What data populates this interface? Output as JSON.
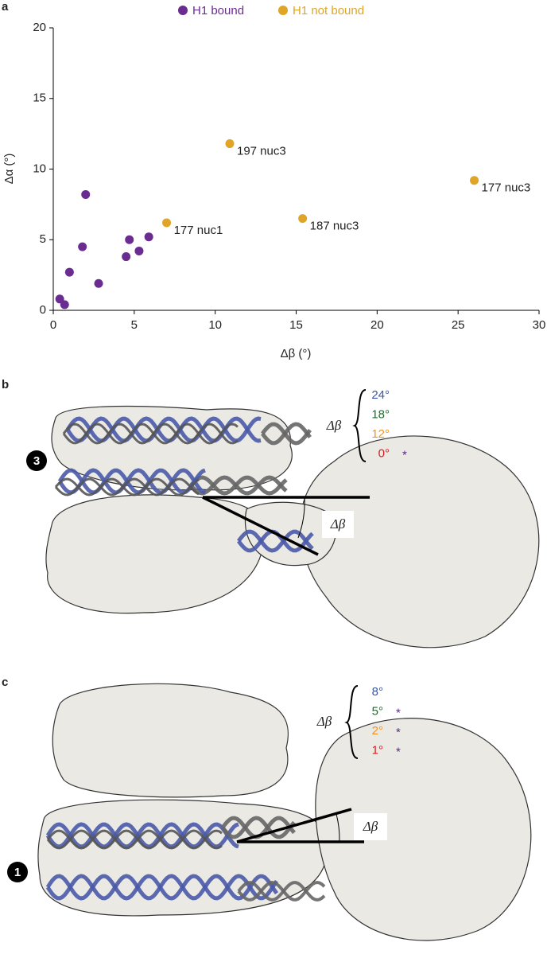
{
  "chart_data": {
    "type": "scatter",
    "x_label": "Δβ (°)",
    "y_label": "Δα (°)",
    "xlim": [
      0,
      30
    ],
    "xticks": [
      0,
      5,
      10,
      15,
      20,
      25,
      30
    ],
    "ylim": [
      0,
      20
    ],
    "yticks": [
      0,
      5,
      10,
      15,
      20
    ],
    "grid": false,
    "legend": "top",
    "series": [
      {
        "name": "H1 bound",
        "color": "#6a2c91",
        "x": [
          0.4,
          0.7,
          1.0,
          1.8,
          2.0,
          2.8,
          4.5,
          4.7,
          5.3,
          5.9
        ],
        "values": [
          0.8,
          0.4,
          2.7,
          4.5,
          8.2,
          1.9,
          3.8,
          5.0,
          4.2,
          5.2
        ]
      },
      {
        "name": "H1 not bound",
        "color": "#e0a526",
        "x": [
          7.0,
          10.9,
          15.4,
          26.0
        ],
        "values": [
          6.2,
          11.8,
          6.5,
          9.2
        ],
        "labels": [
          "177 nuc1",
          "197 nuc3",
          "187 nuc3",
          "177 nuc3"
        ]
      }
    ]
  },
  "panel_labels": [
    "a",
    "b",
    "c"
  ],
  "panel_b": {
    "legend_symbol": "Δβ",
    "angle_label": "Δβ",
    "nucleosome": "3",
    "angles": [
      {
        "text": "24°",
        "color": "#3a55a4"
      },
      {
        "text": "18°",
        "color": "#1e6b2a"
      },
      {
        "text": "12°",
        "color": "#f2921f"
      },
      {
        "text": "0°",
        "color": "#d7191c",
        "star": "*"
      }
    ],
    "star_color": "#5b2a86"
  },
  "panel_c": {
    "legend_symbol": "Δβ",
    "angle_label": "Δβ",
    "nucleosome": "1",
    "angles": [
      {
        "text": "8°",
        "color": "#3a55a4"
      },
      {
        "text": "5°",
        "color": "#1e6b2a",
        "star": "*"
      },
      {
        "text": "2°",
        "color": "#f2921f",
        "star": "*"
      },
      {
        "text": "1°",
        "color": "#d7191c",
        "star": "*"
      }
    ],
    "star_color": "#5b2a86"
  }
}
